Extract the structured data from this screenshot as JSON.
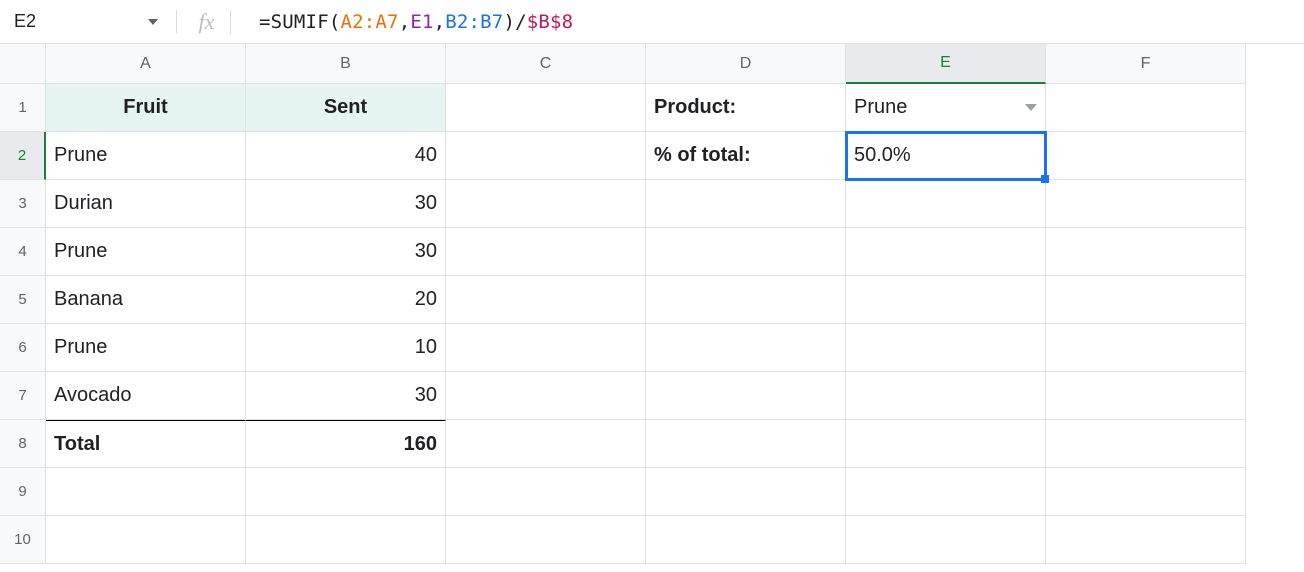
{
  "namebox": {
    "ref": "E2"
  },
  "formula": {
    "tokens": [
      {
        "t": "=SUMIF",
        "c": "#202124"
      },
      {
        "t": "(",
        "c": "#202124"
      },
      {
        "t": "A2:A7",
        "c": "#e8710a"
      },
      {
        "t": ",",
        "c": "#202124"
      },
      {
        "t": "E1",
        "c": "#8e24aa"
      },
      {
        "t": ",",
        "c": "#202124"
      },
      {
        "t": "B2:B7",
        "c": "#1a73e8"
      },
      {
        "t": ")",
        "c": "#202124"
      },
      {
        "t": "/",
        "c": "#202124"
      },
      {
        "t": "$B$8",
        "c": "#c2185b"
      }
    ]
  },
  "column_headers": [
    "A",
    "B",
    "C",
    "D",
    "E",
    "F"
  ],
  "row_headers": [
    "1",
    "2",
    "3",
    "4",
    "5",
    "6",
    "7",
    "8",
    "9",
    "10"
  ],
  "selected": {
    "col": "E",
    "row": "2"
  },
  "cells": {
    "header_fruit": "Fruit",
    "header_sent": "Sent",
    "product_label": "Product:",
    "pct_label": "% of total:",
    "e1_value": "Prune",
    "e2_value": "50.0%",
    "rows": [
      {
        "fruit": "Prune",
        "sent": "40"
      },
      {
        "fruit": "Durian",
        "sent": "30"
      },
      {
        "fruit": "Prune",
        "sent": "30"
      },
      {
        "fruit": "Banana",
        "sent": "20"
      },
      {
        "fruit": "Prune",
        "sent": "10"
      },
      {
        "fruit": "Avocado",
        "sent": "30"
      }
    ],
    "total_label": "Total",
    "total_value": "160"
  },
  "colors": {
    "header_bg": "#e7f4f4",
    "select": "#1a73e8"
  }
}
